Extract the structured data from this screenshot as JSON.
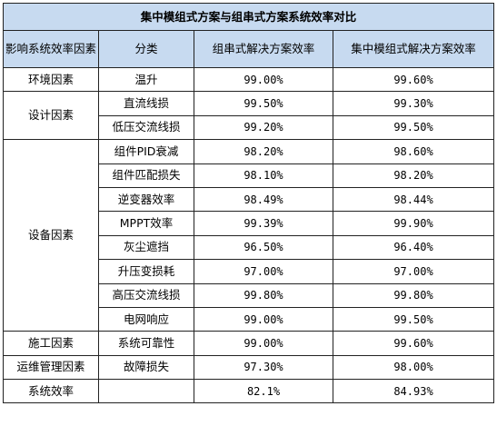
{
  "title": "集中模组式方案与组串式方案系统效率对比",
  "headers": {
    "factor": "影响系统效率因素",
    "category": "分类",
    "string": "组串式解决方案效率",
    "central": "集中模组式解决方案效率"
  },
  "groups": [
    {
      "factor": "环境因素",
      "rows": [
        {
          "category": "温升",
          "string": "99.00%",
          "central": "99.60%"
        }
      ]
    },
    {
      "factor": "设计因素",
      "rows": [
        {
          "category": "直流线损",
          "string": "99.50%",
          "central": "99.30%"
        },
        {
          "category": "低压交流线损",
          "string": "99.20%",
          "central": "99.50%"
        }
      ]
    },
    {
      "factor": "设备因素",
      "rows": [
        {
          "category": "组件PID衰减",
          "string": "98.20%",
          "central": "98.60%"
        },
        {
          "category": "组件匹配损失",
          "string": "98.10%",
          "central": "98.20%"
        },
        {
          "category": "逆变器效率",
          "string": "98.49%",
          "central": "98.44%"
        },
        {
          "category": "MPPT效率",
          "string": "99.39%",
          "central": "99.90%"
        },
        {
          "category": "灰尘遮挡",
          "string": "96.50%",
          "central": "96.40%"
        },
        {
          "category": "升压变损耗",
          "string": "97.00%",
          "central": "97.00%"
        },
        {
          "category": "高压交流线损",
          "string": "99.80%",
          "central": "99.80%"
        },
        {
          "category": "电网响应",
          "string": "99.00%",
          "central": "99.50%"
        }
      ]
    },
    {
      "factor": "施工因素",
      "rows": [
        {
          "category": "系统可靠性",
          "string": "99.00%",
          "central": "99.60%"
        }
      ]
    },
    {
      "factor": "运维管理因素",
      "rows": [
        {
          "category": "故障损失",
          "string": "97.30%",
          "central": "98.00%"
        }
      ]
    }
  ],
  "total": {
    "label": "系统效率",
    "category": "",
    "string": "82.1%",
    "central": "84.93%"
  }
}
